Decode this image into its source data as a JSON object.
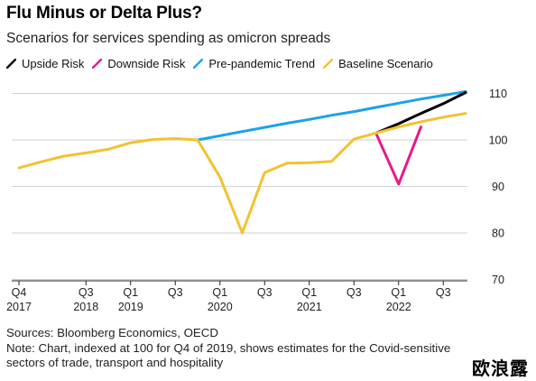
{
  "title": "Flu Minus or Delta Plus?",
  "subtitle": "Scenarios for services spending as omicron spreads",
  "legend": [
    {
      "name": "Upside Risk",
      "color": "#000000"
    },
    {
      "name": "Downside Risk",
      "color": "#e8198b"
    },
    {
      "name": "Pre-pandemic Trend",
      "color": "#1ba3e8"
    },
    {
      "name": "Baseline Scenario",
      "color": "#f2c230"
    }
  ],
  "footer": {
    "sources": "Sources: Bloomberg Economics, OECD",
    "note": "Note: Chart, indexed at 100 for Q4 of 2019, shows estimates for the Covid-sensitive sectors of trade, transport and hospitality"
  },
  "watermark": "欧浪露",
  "chart_data": {
    "type": "line",
    "title": "Flu Minus or Delta Plus?",
    "subtitle": "Scenarios for services spending as omicron spreads",
    "xlabel": "",
    "ylabel": "",
    "ylim": [
      67,
      112
    ],
    "yticks": [
      70,
      80,
      90,
      100,
      110
    ],
    "grid": "horizontal",
    "legend_position": "top",
    "x_categories": [
      "Q4 2017",
      "Q1 2018",
      "Q2 2018",
      "Q3 2018",
      "Q4 2018",
      "Q1 2019",
      "Q2 2019",
      "Q3 2019",
      "Q4 2019",
      "Q1 2020",
      "Q2 2020",
      "Q3 2020",
      "Q4 2020",
      "Q1 2021",
      "Q2 2021",
      "Q3 2021",
      "Q4 2021",
      "Q1 2022",
      "Q2 2022",
      "Q3 2022",
      "Q4 2022"
    ],
    "xtick_labels": [
      {
        "index": 0,
        "top": "Q4",
        "bottom": "2017"
      },
      {
        "index": 3,
        "top": "Q3",
        "bottom": "2018"
      },
      {
        "index": 5,
        "top": "Q1",
        "bottom": "2019"
      },
      {
        "index": 7,
        "top": "Q3",
        "bottom": ""
      },
      {
        "index": 9,
        "top": "Q1",
        "bottom": "2020"
      },
      {
        "index": 11,
        "top": "Q3",
        "bottom": ""
      },
      {
        "index": 13,
        "top": "Q1",
        "bottom": "2021"
      },
      {
        "index": 15,
        "top": "Q3",
        "bottom": ""
      },
      {
        "index": 17,
        "top": "Q1",
        "bottom": "2022"
      },
      {
        "index": 19,
        "top": "Q3",
        "bottom": ""
      }
    ],
    "series": [
      {
        "name": "Pre-pandemic Trend",
        "color": "#1ba3e8",
        "points": [
          [
            8,
            100
          ],
          [
            9,
            100.9
          ],
          [
            10,
            101.8
          ],
          [
            11,
            102.7
          ],
          [
            12,
            103.6
          ],
          [
            13,
            104.4
          ],
          [
            14,
            105.3
          ],
          [
            15,
            106.1
          ],
          [
            16,
            107.0
          ],
          [
            17,
            107.9
          ],
          [
            18,
            108.8
          ],
          [
            19,
            109.6
          ],
          [
            20,
            110.4
          ]
        ]
      },
      {
        "name": "Upside Risk",
        "color": "#000000",
        "points": [
          [
            16,
            101.5
          ],
          [
            17,
            103.5
          ],
          [
            18,
            105.7
          ],
          [
            19,
            107.8
          ],
          [
            20,
            110.2
          ]
        ]
      },
      {
        "name": "Downside Risk",
        "color": "#e8198b",
        "points": [
          [
            16,
            101.3
          ],
          [
            17,
            90.5
          ],
          [
            18,
            102.8
          ]
        ]
      },
      {
        "name": "Baseline Scenario",
        "color": "#f2c230",
        "points": [
          [
            0,
            94.0
          ],
          [
            1,
            95.3
          ],
          [
            2,
            96.5
          ],
          [
            3,
            97.2
          ],
          [
            4,
            98.0
          ],
          [
            5,
            99.4
          ],
          [
            6,
            100.1
          ],
          [
            7,
            100.3
          ],
          [
            8,
            100.0
          ],
          [
            9,
            92.0
          ],
          [
            10,
            80.0
          ],
          [
            11,
            93.0
          ],
          [
            12,
            95.0
          ],
          [
            13,
            95.1
          ],
          [
            14,
            95.4
          ],
          [
            15,
            100.2
          ],
          [
            16,
            101.5
          ],
          [
            17,
            102.8
          ],
          [
            18,
            103.9
          ],
          [
            19,
            104.9
          ],
          [
            20,
            105.7
          ]
        ]
      }
    ]
  }
}
